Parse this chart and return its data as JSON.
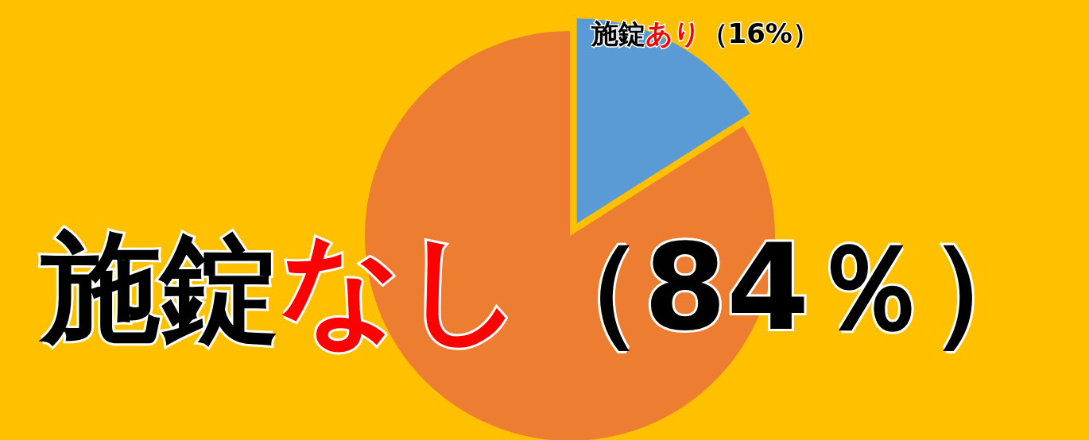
{
  "chart_data": {
    "type": "pie",
    "categories": [
      "施錠あり",
      "施錠なし"
    ],
    "values": [
      16,
      84
    ],
    "colors": [
      "#5b9bd5",
      "#ed7d31"
    ],
    "value_labels": [
      "（16%）",
      "（84％）"
    ]
  }
}
